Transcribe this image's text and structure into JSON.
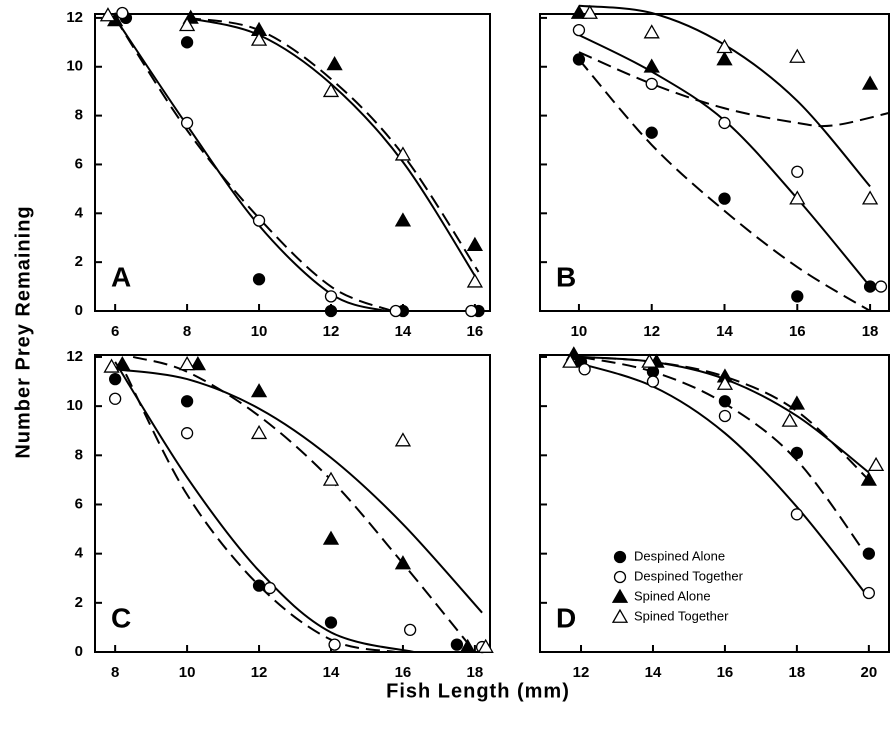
{
  "figure": {
    "y_label": "Number Prey Remaining",
    "x_label": "Fish Length (mm)"
  },
  "chart_data": [
    {
      "type": "scatter",
      "panel_label": "A",
      "xlim": [
        5.44,
        16.42
      ],
      "ylim": [
        0,
        12.16
      ],
      "xticks": [
        6,
        8,
        10,
        12,
        14,
        16
      ],
      "yticks": [
        0,
        2,
        4,
        6,
        8,
        10,
        12
      ],
      "ytick_labels": true,
      "color": "#000000",
      "series": [
        {
          "marker": "filled-circle",
          "x": [
            6.3,
            8,
            10,
            12,
            14,
            16.1
          ],
          "values": [
            12,
            11,
            1.3,
            0,
            0,
            0
          ]
        },
        {
          "marker": "open-circle",
          "x": [
            6.2,
            8,
            10,
            12,
            13.8,
            15.9
          ],
          "values": [
            12.2,
            7.7,
            3.7,
            0.6,
            0,
            0
          ]
        },
        {
          "marker": "filled-triangle",
          "x": [
            6,
            8.1,
            10,
            12.1,
            14,
            16
          ],
          "values": [
            11.9,
            12,
            11.5,
            10.1,
            3.7,
            2.7
          ]
        },
        {
          "marker": "open-triangle",
          "x": [
            5.8,
            8,
            10,
            12,
            14,
            16
          ],
          "values": [
            12.1,
            11.7,
            11.1,
            9,
            6.4,
            1.2
          ]
        }
      ],
      "curves": [
        {
          "dash": false,
          "x": [
            6,
            8,
            10,
            12,
            13.5
          ],
          "values": [
            12,
            7.6,
            3.5,
            0.7,
            0
          ]
        },
        {
          "dash": true,
          "x": [
            6,
            8,
            10,
            12,
            13.7
          ],
          "values": [
            12,
            7.4,
            3.8,
            1.0,
            0
          ]
        },
        {
          "dash": false,
          "x": [
            8,
            10,
            12,
            14,
            16.1
          ],
          "values": [
            12,
            11.3,
            9.3,
            6.1,
            1.2
          ]
        },
        {
          "dash": true,
          "x": [
            8,
            10,
            12,
            14,
            16.1
          ],
          "values": [
            12,
            11.5,
            9.5,
            6.4,
            1.6
          ]
        }
      ]
    },
    {
      "type": "scatter",
      "panel_label": "B",
      "xlim": [
        8.93,
        18.52
      ],
      "ylim": [
        0,
        12.16
      ],
      "xticks": [
        10,
        12,
        14,
        16,
        18
      ],
      "yticks": [
        0,
        2,
        4,
        6,
        8,
        10,
        12
      ],
      "ytick_labels": false,
      "color": "#000000",
      "series": [
        {
          "marker": "filled-circle",
          "x": [
            10,
            12,
            14,
            16,
            18
          ],
          "values": [
            10.3,
            7.3,
            4.6,
            0.6,
            1
          ]
        },
        {
          "marker": "open-circle",
          "x": [
            10,
            12,
            14,
            16,
            18.3
          ],
          "values": [
            11.5,
            9.3,
            7.7,
            5.7,
            1
          ]
        },
        {
          "marker": "filled-triangle",
          "x": [
            10,
            12,
            14,
            18
          ],
          "values": [
            12.2,
            10,
            10.3,
            9.3
          ]
        },
        {
          "marker": "open-triangle",
          "x": [
            10.3,
            12,
            14,
            16,
            16,
            18
          ],
          "values": [
            12.2,
            11.4,
            10.8,
            10.4,
            4.6,
            4.6
          ]
        }
      ],
      "curves": [
        {
          "dash": false,
          "x": [
            10,
            12,
            14,
            16,
            18
          ],
          "values": [
            12.5,
            12.2,
            10.9,
            8.6,
            5.1
          ]
        },
        {
          "dash": true,
          "x": [
            10,
            12,
            14,
            16,
            17,
            18.5
          ],
          "values": [
            10.6,
            9.3,
            8.3,
            7.7,
            7.6,
            8.1
          ]
        },
        {
          "dash": false,
          "x": [
            10,
            12,
            14,
            16,
            18
          ],
          "values": [
            11.3,
            9.8,
            7.8,
            4.6,
            1
          ]
        },
        {
          "dash": true,
          "x": [
            10,
            12,
            14,
            16,
            18
          ],
          "values": [
            10.3,
            6.8,
            4.1,
            1.8,
            0
          ]
        }
      ]
    },
    {
      "type": "scatter",
      "panel_label": "C",
      "xlim": [
        7.44,
        18.42
      ],
      "ylim": [
        0,
        12.08
      ],
      "xticks": [
        8,
        10,
        12,
        14,
        16,
        18
      ],
      "yticks": [
        0,
        2,
        4,
        6,
        8,
        10,
        12
      ],
      "ytick_labels": true,
      "color": "#000000",
      "series": [
        {
          "marker": "filled-circle",
          "x": [
            8,
            10,
            12,
            14,
            17.5
          ],
          "values": [
            11.1,
            10.2,
            2.7,
            1.2,
            0.3
          ]
        },
        {
          "marker": "open-circle",
          "x": [
            8,
            10,
            12.3,
            14.1,
            16.2,
            18.2
          ],
          "values": [
            10.3,
            8.9,
            2.6,
            0.3,
            0.9,
            0.2
          ]
        },
        {
          "marker": "filled-triangle",
          "x": [
            8.2,
            10.3,
            12,
            14,
            16,
            17.8
          ],
          "values": [
            11.7,
            11.7,
            10.6,
            4.6,
            3.6,
            0.2
          ]
        },
        {
          "marker": "open-triangle",
          "x": [
            7.9,
            10,
            12,
            14,
            16,
            18.3
          ],
          "values": [
            11.6,
            11.7,
            8.9,
            7,
            8.6,
            0.2
          ]
        }
      ],
      "curves": [
        {
          "dash": false,
          "x": [
            8,
            10,
            12,
            14,
            16,
            18.2
          ],
          "values": [
            11.5,
            11.1,
            9.9,
            7.9,
            5.2,
            1.6
          ]
        },
        {
          "dash": true,
          "x": [
            8.5,
            10,
            12,
            14,
            16,
            18
          ],
          "values": [
            12,
            11.4,
            9.6,
            7,
            3.6,
            0
          ]
        },
        {
          "dash": false,
          "x": [
            8,
            10,
            12,
            14,
            16.3
          ],
          "values": [
            11.8,
            7.1,
            3.3,
            0.8,
            0
          ]
        },
        {
          "dash": true,
          "x": [
            8.3,
            10,
            12,
            14,
            15.8
          ],
          "values": [
            11.3,
            6.4,
            2.7,
            0.5,
            0
          ]
        }
      ]
    },
    {
      "type": "scatter",
      "panel_label": "D",
      "xlim": [
        10.86,
        20.56
      ],
      "ylim": [
        0,
        12.08
      ],
      "xticks": [
        12,
        14,
        16,
        18,
        20
      ],
      "yticks": [
        0,
        2,
        4,
        6,
        8,
        10,
        12
      ],
      "ytick_labels": false,
      "color": "#000000",
      "legend": "lower-left",
      "series": [
        {
          "name": "Despined Alone",
          "marker": "filled-circle",
          "x": [
            12,
            14,
            16,
            18,
            20
          ],
          "values": [
            11.8,
            11.4,
            10.2,
            8.1,
            4
          ]
        },
        {
          "name": "Despined Together",
          "marker": "open-circle",
          "x": [
            12.1,
            14,
            16,
            18,
            20
          ],
          "values": [
            11.5,
            11,
            9.6,
            5.6,
            2.4
          ]
        },
        {
          "name": "Spined Alone",
          "marker": "filled-triangle",
          "x": [
            11.8,
            14.1,
            16,
            18,
            20
          ],
          "values": [
            12.1,
            11.8,
            11.2,
            10.1,
            7
          ]
        },
        {
          "name": "Spined Together",
          "marker": "open-triangle",
          "x": [
            11.7,
            13.9,
            16,
            17.8,
            20.2
          ],
          "values": [
            11.8,
            11.8,
            10.9,
            9.4,
            7.6
          ]
        }
      ],
      "curves": [
        {
          "dash": false,
          "x": [
            11.8,
            14,
            16,
            18,
            20
          ],
          "values": [
            11.8,
            10.8,
            8.9,
            5.9,
            2.2
          ]
        },
        {
          "dash": true,
          "x": [
            12,
            14,
            16,
            18,
            20
          ],
          "values": [
            12,
            11.4,
            10.1,
            7.8,
            3.8
          ]
        },
        {
          "dash": false,
          "x": [
            12,
            14,
            16,
            18,
            20
          ],
          "values": [
            12,
            11.8,
            11.1,
            9.6,
            7.3
          ]
        },
        {
          "dash": true,
          "x": [
            12,
            14,
            16,
            18,
            20
          ],
          "values": [
            12,
            11.8,
            11.2,
            9.8,
            7
          ]
        }
      ]
    }
  ]
}
